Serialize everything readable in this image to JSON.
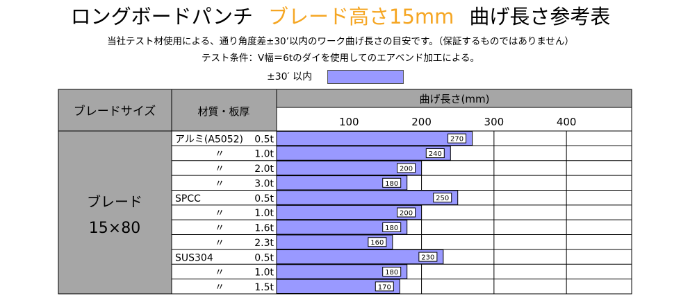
{
  "title": {
    "main": "ロングボードパンチ",
    "accent": "ブレード高さ15mm",
    "suffix": "曲げ長さ参考表"
  },
  "subtitle_line1": "当社テスト材使用による、通り角度差±30’以内のワーク曲げ長さの目安です。（保証するものではありません）",
  "subtitle_line2": "テスト条件：V幅＝6tのダイを使用してのエアベンド加工による。",
  "legend": {
    "label": "±30′ 以内",
    "color": "#9999ff"
  },
  "table": {
    "header_blade": "ブレードサイズ",
    "header_material": "材質・板厚",
    "header_length": "曲げ長さ(mm)",
    "blade_line1": "ブレード",
    "blade_line2": "15×80"
  },
  "chart_data": {
    "type": "bar",
    "orientation": "horizontal",
    "xlabel": "曲げ長さ(mm)",
    "xticks": [
      100,
      200,
      300,
      400
    ],
    "xlim": [
      0,
      490
    ],
    "bar_color": "#9999ff",
    "categories": [
      {
        "material": "アルミ(A5052)",
        "thickness": "0.5t"
      },
      {
        "material": "〃",
        "thickness": "1.0t"
      },
      {
        "material": "〃",
        "thickness": "2.0t"
      },
      {
        "material": "〃",
        "thickness": "3.0t"
      },
      {
        "material": "SPCC",
        "thickness": "0.5t"
      },
      {
        "material": "〃",
        "thickness": "1.0t"
      },
      {
        "material": "〃",
        "thickness": "1.6t"
      },
      {
        "material": "〃",
        "thickness": "2.3t"
      },
      {
        "material": "SUS304",
        "thickness": "0.5t"
      },
      {
        "material": "〃",
        "thickness": "1.0t"
      },
      {
        "material": "〃",
        "thickness": "1.5t"
      }
    ],
    "values": [
      270,
      240,
      200,
      180,
      250,
      200,
      180,
      160,
      230,
      180,
      170
    ]
  }
}
